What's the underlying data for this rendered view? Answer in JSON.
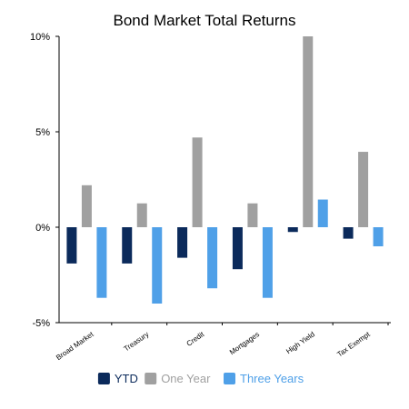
{
  "chart_data": {
    "type": "bar",
    "title": "Bond Market Total Returns",
    "categories": [
      "Broad Market",
      "Treasury",
      "Credit",
      "Mortgages",
      "High Yield",
      "Tax Exempt"
    ],
    "series": [
      {
        "name": "YTD",
        "color": "#0b2a5b",
        "values": [
          -1.9,
          -1.9,
          -1.6,
          -2.2,
          -0.25,
          -0.6
        ]
      },
      {
        "name": "One Year",
        "color": "#a0a0a0",
        "values": [
          2.2,
          1.25,
          4.7,
          1.25,
          10.0,
          3.95
        ]
      },
      {
        "name": "Three Years",
        "color": "#4fa0e8",
        "values": [
          -3.7,
          -4.0,
          -3.2,
          -3.7,
          1.45,
          -1.0
        ]
      }
    ],
    "y_ticks": [
      "10%",
      "5%",
      "0%",
      "-5%"
    ],
    "ylim": [
      -5,
      10
    ],
    "grid": false,
    "legend_position": "bottom"
  }
}
